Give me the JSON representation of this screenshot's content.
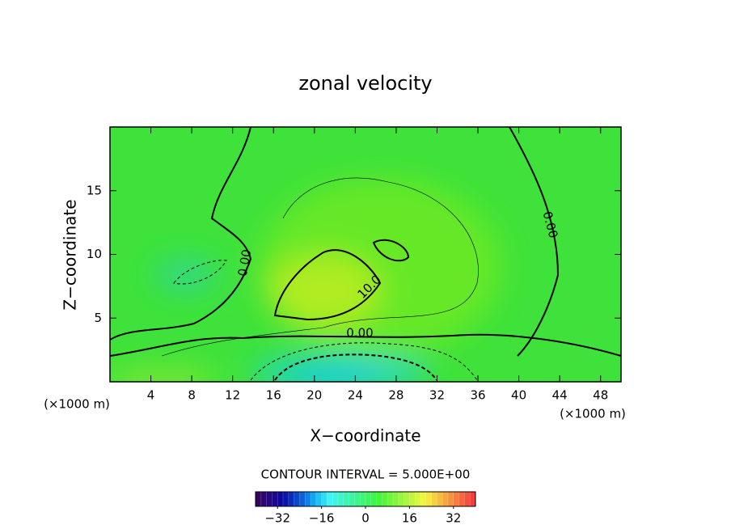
{
  "chart_data": {
    "type": "contour",
    "title": "zonal velocity",
    "xlabel": "X−coordinate",
    "ylabel": "Z−coordinate",
    "x_unit_label": "(×1000 m)",
    "xlim": [
      0,
      50
    ],
    "xticks": [
      4,
      8,
      12,
      16,
      20,
      24,
      28,
      32,
      36,
      40,
      44,
      48
    ],
    "ylim": [
      0,
      20
    ],
    "yticks": [
      5,
      10,
      15
    ],
    "contour_labels": [
      "0.00",
      "10.0",
      "0.00",
      "0.00"
    ],
    "contour_interval_text": "CONTOUR INTERVAL = 5.000E+00",
    "colorbar": {
      "lim": [
        -40,
        40
      ],
      "ticks": [
        {
          "value": -32,
          "label": "−32"
        },
        {
          "value": -16,
          "label": "−16"
        },
        0,
        16,
        32
      ]
    }
  }
}
